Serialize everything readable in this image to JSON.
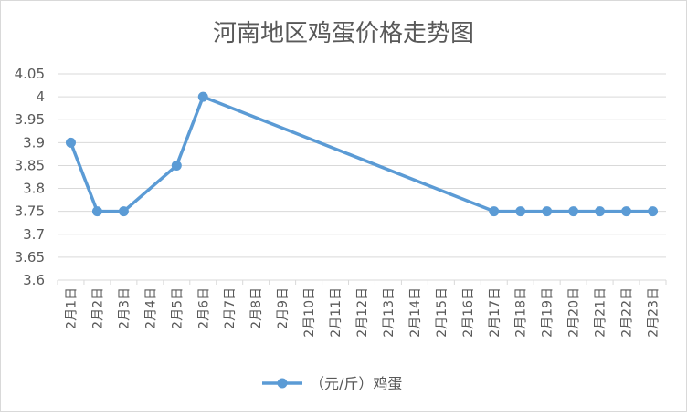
{
  "chart_data": {
    "type": "line",
    "title": "河南地区鸡蛋价格走势图",
    "categories": [
      "2月1日",
      "2月2日",
      "2月3日",
      "2月4日",
      "2月5日",
      "2月6日",
      "2月7日",
      "2月8日",
      "2月9日",
      "2月10日",
      "2月11日",
      "2月12日",
      "2月13日",
      "2月14日",
      "2月15日",
      "2月16日",
      "2月17日",
      "2月18日",
      "2月19日",
      "2月20日",
      "2月21日",
      "2月22日",
      "2月23日"
    ],
    "series": [
      {
        "name": "（元/斤）鸡蛋",
        "color": "#5B9BD5",
        "points": [
          {
            "x": "2月1日",
            "y": 3.9
          },
          {
            "x": "2月2日",
            "y": 3.75
          },
          {
            "x": "2月3日",
            "y": 3.75
          },
          {
            "x": "2月5日",
            "y": 3.85
          },
          {
            "x": "2月6日",
            "y": 4.0
          },
          {
            "x": "2月17日",
            "y": 3.75
          },
          {
            "x": "2月18日",
            "y": 3.75
          },
          {
            "x": "2月19日",
            "y": 3.75
          },
          {
            "x": "2月20日",
            "y": 3.75
          },
          {
            "x": "2月21日",
            "y": 3.75
          },
          {
            "x": "2月22日",
            "y": 3.75
          },
          {
            "x": "2月23日",
            "y": 3.75
          }
        ]
      }
    ],
    "yticks": [
      "3.6",
      "3.65",
      "3.7",
      "3.75",
      "3.8",
      "3.85",
      "3.9",
      "3.95",
      "4",
      "4.05"
    ],
    "ylim": [
      3.6,
      4.05
    ],
    "grid": true,
    "legend_position": "bottom"
  }
}
